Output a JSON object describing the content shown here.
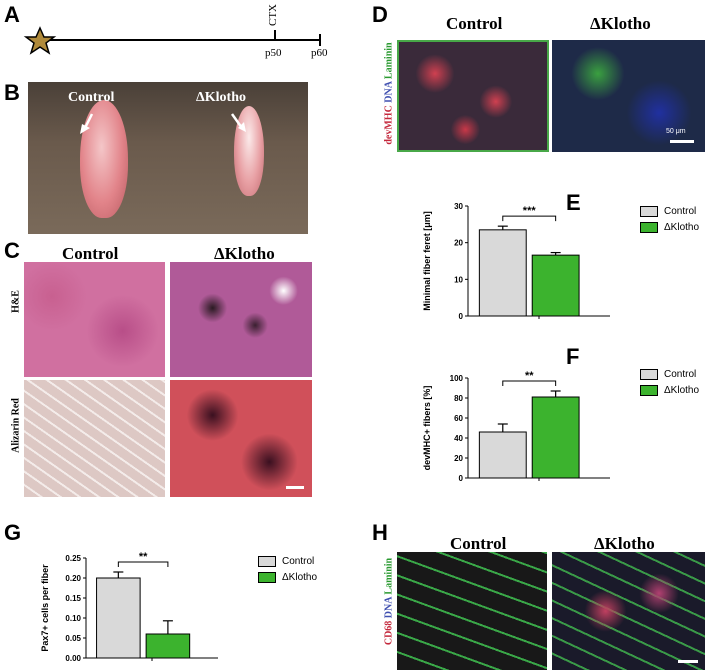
{
  "panels": {
    "A": {
      "label": "A",
      "timeline": {
        "marks": [
          "CTX",
          "p50",
          "p60"
        ]
      }
    },
    "B": {
      "label": "B",
      "control": "Control",
      "klotho": "ΔKlotho"
    },
    "C": {
      "label": "C",
      "control": "Control",
      "klotho": "ΔKlotho",
      "row1": "H&E",
      "row2": "Alizarin Red"
    },
    "D": {
      "label": "D",
      "control": "Control",
      "klotho": "ΔKlotho",
      "stain_red": "devMHC",
      "stain_blue": "DNA",
      "stain_green": "Laminin",
      "scale": "50 μm"
    },
    "E": {
      "label": "E",
      "sig": "***"
    },
    "F": {
      "label": "F",
      "sig": "**"
    },
    "G": {
      "label": "G",
      "sig": "**"
    },
    "H": {
      "label": "H",
      "control": "Control",
      "klotho": "ΔKlotho",
      "stain_red": "CD68",
      "stain_blue": "DNA",
      "stain_green": "Laminin"
    }
  },
  "legend": {
    "control": "Control",
    "klotho": "ΔKlotho",
    "control_color": "#d9d9d9",
    "klotho_color": "#3cb32e"
  },
  "chart_data": [
    {
      "id": "E",
      "type": "bar",
      "categories": [
        "Control",
        "ΔKlotho"
      ],
      "values": [
        23.5,
        16.6
      ],
      "errors": [
        1.0,
        0.7
      ],
      "ylabel": "Minimal fiber feret [μm]",
      "ylim": [
        0,
        30
      ],
      "yticks": [
        "0",
        "10",
        "20",
        "30"
      ],
      "legend_placement": "right"
    },
    {
      "id": "F",
      "type": "bar",
      "categories": [
        "Control",
        "ΔKlotho"
      ],
      "values": [
        46,
        81
      ],
      "errors": [
        8,
        6
      ],
      "ylabel": "devMHC+ fibers [%]",
      "ylim": [
        0,
        100
      ],
      "yticks": [
        "0",
        "20",
        "40",
        "60",
        "80",
        "100"
      ],
      "legend_placement": "right"
    },
    {
      "id": "G",
      "type": "bar",
      "categories": [
        "Control",
        "ΔKlotho"
      ],
      "values": [
        0.2,
        0.06
      ],
      "errors": [
        0.015,
        0.033
      ],
      "ylabel": "Pax7+ cells per fiber",
      "ylim": [
        0,
        0.25
      ],
      "yticks": [
        "0.00",
        "0.05",
        "0.10",
        "0.15",
        "0.20",
        "0.25"
      ],
      "legend_placement": "right"
    }
  ]
}
